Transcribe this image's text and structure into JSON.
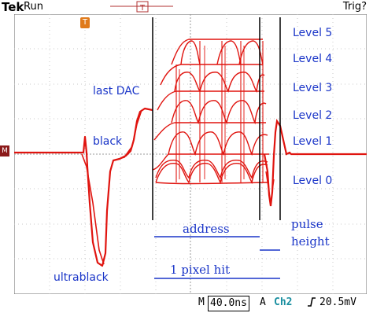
{
  "header": {
    "brand": "Tek",
    "state": "Run",
    "trigger_status": "Trig?"
  },
  "marker": {
    "label": "M"
  },
  "trigger_marker": {
    "label": "T"
  },
  "annotations": {
    "levels": [
      "Level 5",
      "Level 4",
      "Level 3",
      "Level 2",
      "Level 1",
      "Level 0"
    ],
    "last_dac": "last DAC",
    "black": "black",
    "ultrablack": "ultrablack",
    "address": "address",
    "pulse_height": [
      "pulse",
      "height"
    ],
    "pixel_hit": "1 pixel hit"
  },
  "footer": {
    "timebase_prefix": "M",
    "timebase": "40.0ns",
    "trigger_source_prefix": "A",
    "channel": "Ch2",
    "slope_icon": "rising-edge-icon",
    "trigger_level": "20.5mV"
  },
  "colors": {
    "trace": "#e0140f",
    "annotation": "#1a35c8",
    "grid": "#c9c9c9",
    "channel": "#1a8fa0"
  }
}
